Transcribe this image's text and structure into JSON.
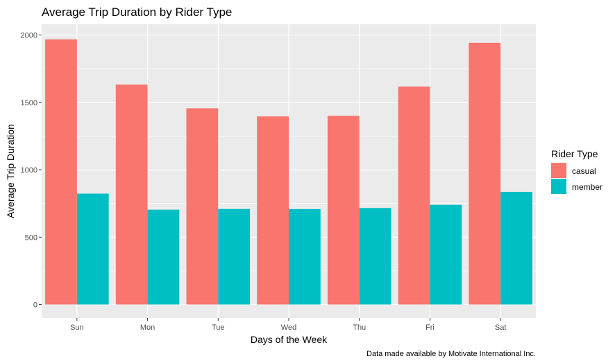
{
  "chart_data": {
    "type": "bar",
    "title": "Average Trip Duration by Rider Type",
    "xlabel": "Days of the Week",
    "ylabel": "Average Trip Duration",
    "caption": "Data made available by Motivate International Inc.",
    "categories": [
      "Sun",
      "Mon",
      "Tue",
      "Wed",
      "Thu",
      "Fri",
      "Sat"
    ],
    "series": [
      {
        "name": "casual",
        "color": "#F8766D",
        "values": [
          1968,
          1632,
          1456,
          1396,
          1401,
          1618,
          1942
        ]
      },
      {
        "name": "member",
        "color": "#00BFC4",
        "values": [
          823,
          704,
          709,
          708,
          716,
          740,
          836
        ]
      }
    ],
    "ylim": [
      -100,
      2080
    ],
    "yticks": [
      0,
      500,
      1000,
      1500,
      2000
    ],
    "grid": true,
    "legend": {
      "title": "Rider Type",
      "placement": "right"
    },
    "panel_background": "#EBEBEB",
    "gridline_color": "#FFFFFF"
  }
}
